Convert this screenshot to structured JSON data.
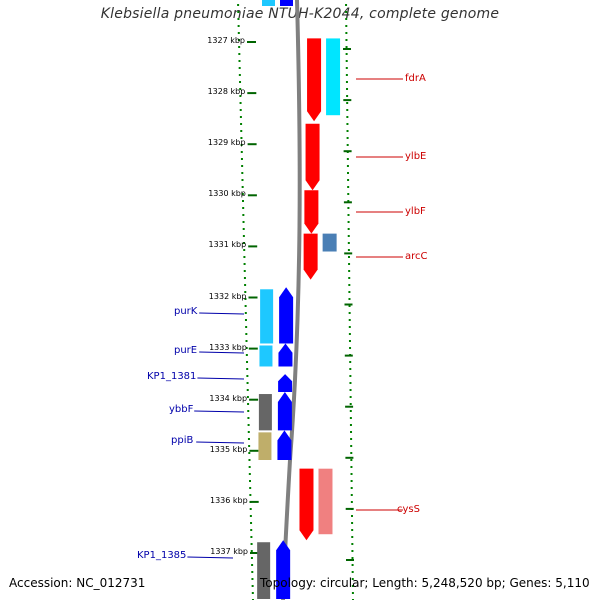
{
  "title": "Klebsiella pneumoniae NTUH-K2044, complete genome",
  "footer": {
    "accession": "Accession: NC_012731",
    "topology": "Topology: circular; Length: 5,248,520 bp; Genes: 5,110"
  },
  "axis": {
    "unit": "kbp",
    "ticks": [
      {
        "label": "1327 kbp",
        "value": 1327
      },
      {
        "label": "1328 kbp",
        "value": 1328
      },
      {
        "label": "1329 kbp",
        "value": 1329
      },
      {
        "label": "1330 kbp",
        "value": 1330
      },
      {
        "label": "1331 kbp",
        "value": 1331
      },
      {
        "label": "1332 kbp",
        "value": 1332
      },
      {
        "label": "1333 kbp",
        "value": 1333
      },
      {
        "label": "1334 kbp",
        "value": 1334
      },
      {
        "label": "1335 kbp",
        "value": 1335
      },
      {
        "label": "1336 kbp",
        "value": 1336
      },
      {
        "label": "1337 kbp",
        "value": 1337
      }
    ]
  },
  "genes_right": [
    {
      "name": "fdrA",
      "start": 1326.93,
      "end": 1328.55,
      "color": "#ff0000",
      "label_color": "#cc0000"
    },
    {
      "name": "ylbE",
      "start": 1328.6,
      "end": 1329.9,
      "color": "#ff0000",
      "label_color": "#cc0000"
    },
    {
      "name": "ylbF",
      "start": 1329.9,
      "end": 1330.75,
      "color": "#ff0000",
      "label_color": "#cc0000"
    },
    {
      "name": "arcC",
      "start": 1330.75,
      "end": 1331.65,
      "color": "#ff0000",
      "label_color": "#cc0000"
    },
    {
      "name": "cysS",
      "start": 1335.35,
      "end": 1336.75,
      "color": "#ff0000",
      "label_color": "#cc0000"
    }
  ],
  "genes_left": [
    {
      "name": "purK",
      "start": 1331.8,
      "end": 1332.9,
      "color": "#0000ff",
      "label_color": "#0000aa"
    },
    {
      "name": "purE",
      "start": 1332.9,
      "end": 1333.35,
      "color": "#0000ff",
      "label_color": "#0000aa"
    },
    {
      "name": "KP1_1381",
      "start": 1333.5,
      "end": 1333.85,
      "color": "#0000ff",
      "label_color": "#0000aa"
    },
    {
      "name": "ybbF",
      "start": 1333.85,
      "end": 1334.6,
      "color": "#0000ff",
      "label_color": "#0000aa"
    },
    {
      "name": "ppiB",
      "start": 1334.6,
      "end": 1335.18,
      "color": "#0000ff",
      "label_color": "#0000aa"
    },
    {
      "name": "KP1_1385",
      "start": 1336.75,
      "end": 1337.9,
      "color": "#0000ff",
      "label_color": "#0000aa"
    }
  ],
  "colors": {
    "forward_cds": "#ff0000",
    "forward_feature": "#00e5ff",
    "forward_feature_alt": "#4a7fb5",
    "forward_feature_pink": "#f08080",
    "reverse_cds": "#0000ff",
    "reverse_feature": "#1ec8ff",
    "reverse_feature_grey": "#666666",
    "reverse_feature_tan": "#bfae6a",
    "backbone": "#808080",
    "dots": "#008000"
  }
}
